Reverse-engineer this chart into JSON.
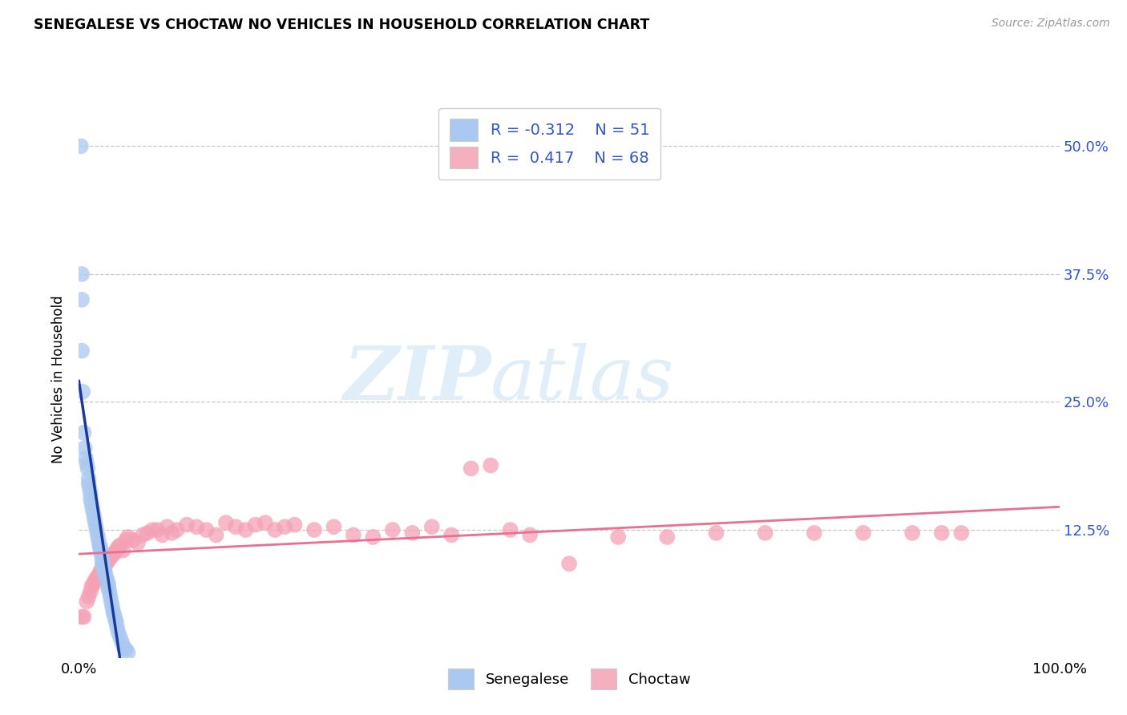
{
  "title": "SENEGALESE VS CHOCTAW NO VEHICLES IN HOUSEHOLD CORRELATION CHART",
  "source_text": "Source: ZipAtlas.com",
  "ylabel": "No Vehicles in Household",
  "ytick_labels": [
    "50.0%",
    "37.5%",
    "25.0%",
    "12.5%"
  ],
  "ytick_values": [
    0.5,
    0.375,
    0.25,
    0.125
  ],
  "xlim": [
    0.0,
    1.0
  ],
  "ylim": [
    0.0,
    0.545
  ],
  "watermark_zip": "ZIP",
  "watermark_atlas": "atlas",
  "senegalese_color": "#aac8f0",
  "choctaw_color": "#f5a0b5",
  "senegalese_line_color": "#1a3a9a",
  "choctaw_line_color": "#e87090",
  "legend_color_blue": "#aac8f0",
  "legend_color_pink": "#f5b0c0",
  "legend_text_color": "#3355cc",
  "senegalese_x": [
    0.002,
    0.003,
    0.003,
    0.003,
    0.004,
    0.005,
    0.006,
    0.007,
    0.008,
    0.009,
    0.01,
    0.01,
    0.011,
    0.012,
    0.012,
    0.013,
    0.014,
    0.015,
    0.016,
    0.017,
    0.018,
    0.019,
    0.02,
    0.021,
    0.022,
    0.022,
    0.023,
    0.024,
    0.024,
    0.025,
    0.026,
    0.027,
    0.028,
    0.029,
    0.03,
    0.03,
    0.031,
    0.032,
    0.033,
    0.034,
    0.035,
    0.036,
    0.037,
    0.038,
    0.039,
    0.04,
    0.042,
    0.044,
    0.046,
    0.048,
    0.05
  ],
  "senegalese_y": [
    0.5,
    0.375,
    0.35,
    0.3,
    0.26,
    0.22,
    0.205,
    0.195,
    0.19,
    0.185,
    0.175,
    0.17,
    0.165,
    0.16,
    0.155,
    0.15,
    0.145,
    0.14,
    0.135,
    0.13,
    0.125,
    0.12,
    0.115,
    0.11,
    0.105,
    0.108,
    0.1,
    0.095,
    0.092,
    0.088,
    0.085,
    0.082,
    0.078,
    0.075,
    0.072,
    0.068,
    0.065,
    0.06,
    0.055,
    0.05,
    0.045,
    0.042,
    0.038,
    0.035,
    0.03,
    0.025,
    0.02,
    0.015,
    0.01,
    0.008,
    0.005
  ],
  "choctaw_x": [
    0.003,
    0.005,
    0.008,
    0.01,
    0.012,
    0.013,
    0.015,
    0.016,
    0.018,
    0.02,
    0.022,
    0.024,
    0.026,
    0.028,
    0.03,
    0.032,
    0.034,
    0.036,
    0.038,
    0.04,
    0.042,
    0.045,
    0.048,
    0.05,
    0.055,
    0.06,
    0.065,
    0.07,
    0.075,
    0.08,
    0.085,
    0.09,
    0.095,
    0.1,
    0.11,
    0.12,
    0.13,
    0.14,
    0.15,
    0.16,
    0.17,
    0.18,
    0.19,
    0.2,
    0.21,
    0.22,
    0.24,
    0.26,
    0.28,
    0.3,
    0.32,
    0.34,
    0.36,
    0.38,
    0.4,
    0.42,
    0.44,
    0.46,
    0.5,
    0.55,
    0.6,
    0.65,
    0.7,
    0.75,
    0.8,
    0.85,
    0.88,
    0.9
  ],
  "choctaw_y": [
    0.04,
    0.04,
    0.055,
    0.06,
    0.065,
    0.07,
    0.072,
    0.075,
    0.078,
    0.08,
    0.085,
    0.088,
    0.09,
    0.092,
    0.095,
    0.098,
    0.1,
    0.102,
    0.105,
    0.108,
    0.11,
    0.105,
    0.115,
    0.118,
    0.115,
    0.112,
    0.12,
    0.122,
    0.125,
    0.125,
    0.12,
    0.128,
    0.122,
    0.125,
    0.13,
    0.128,
    0.125,
    0.12,
    0.132,
    0.128,
    0.125,
    0.13,
    0.132,
    0.125,
    0.128,
    0.13,
    0.125,
    0.128,
    0.12,
    0.118,
    0.125,
    0.122,
    0.128,
    0.12,
    0.185,
    0.188,
    0.125,
    0.12,
    0.092,
    0.118,
    0.118,
    0.122,
    0.122,
    0.122,
    0.122,
    0.122,
    0.122,
    0.122
  ]
}
